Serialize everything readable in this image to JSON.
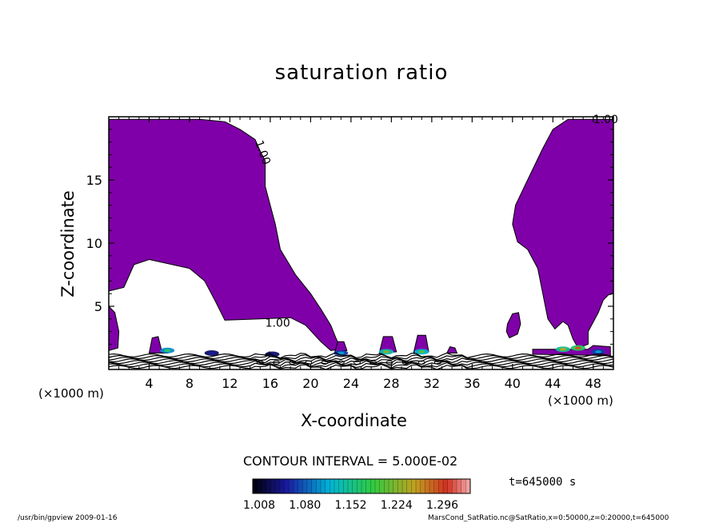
{
  "chart_data": {
    "type": "contour",
    "title": "saturation ratio",
    "xlabel": "X-coordinate",
    "ylabel": "Z-coordinate",
    "x_unit_left": "(×1000 m)",
    "x_unit_right": "(×1000 m)",
    "xlim": [
      0,
      50
    ],
    "ylim": [
      0,
      20
    ],
    "x_ticks": [
      4,
      8,
      12,
      16,
      20,
      24,
      28,
      32,
      36,
      40,
      44,
      48
    ],
    "y_ticks": [
      5,
      10,
      15
    ],
    "contour_labels": [
      "1.00",
      "1.00",
      "1.00"
    ],
    "contour_interval": "CONTOUR INTERVAL = 5.000E-02",
    "colorbar_ticks": [
      "1.008",
      "1.080",
      "1.152",
      "1.224",
      "1.296"
    ],
    "colorbar_range": [
      1.008,
      1.296
    ],
    "fill_color": "#7f00a8",
    "time_label": "t=645000 s",
    "saturated_regions": [
      {
        "name": "left-upper",
        "outline": [
          [
            0,
            19.8
          ],
          [
            9,
            19.8
          ],
          [
            11.5,
            19.6
          ],
          [
            13,
            19
          ],
          [
            14.5,
            18.2
          ],
          [
            15,
            17.3
          ],
          [
            15.5,
            16.5
          ],
          [
            15.5,
            14.5
          ],
          [
            16,
            13
          ],
          [
            16.5,
            11.5
          ],
          [
            17,
            9.5
          ],
          [
            18.5,
            7.5
          ],
          [
            20,
            6
          ],
          [
            21,
            4.8
          ],
          [
            22,
            3.5
          ],
          [
            22.5,
            2.5
          ],
          [
            23,
            1.6
          ],
          [
            22,
            1.5
          ],
          [
            21,
            2.2
          ],
          [
            19.5,
            3.5
          ],
          [
            18,
            4.1
          ],
          [
            15,
            4
          ],
          [
            11.5,
            3.9
          ],
          [
            10.5,
            5.5
          ],
          [
            9.5,
            7
          ],
          [
            8,
            8
          ],
          [
            4,
            8.7
          ],
          [
            2.5,
            8.3
          ],
          [
            1.5,
            6.5
          ],
          [
            0,
            6.2
          ]
        ]
      },
      {
        "name": "left-edge",
        "outline": [
          [
            0,
            5
          ],
          [
            0.6,
            4.5
          ],
          [
            1,
            3
          ],
          [
            0.9,
            1.7
          ],
          [
            0,
            1.5
          ]
        ]
      },
      {
        "name": "right-upper",
        "outline": [
          [
            49,
            19.8
          ],
          [
            50,
            19.8
          ],
          [
            50,
            6
          ],
          [
            49.5,
            5.9
          ],
          [
            49,
            5.5
          ],
          [
            48.5,
            4.5
          ],
          [
            47.5,
            3
          ],
          [
            47.5,
            2
          ],
          [
            46.5,
            1.7
          ],
          [
            46,
            2.4
          ],
          [
            45.5,
            3.5
          ],
          [
            45,
            3.8
          ],
          [
            44.2,
            3.2
          ],
          [
            43.5,
            4
          ],
          [
            43,
            6
          ],
          [
            42.5,
            8
          ],
          [
            41.5,
            9.5
          ],
          [
            40.5,
            10.1
          ],
          [
            40,
            11.5
          ],
          [
            40.3,
            13
          ],
          [
            41.5,
            15
          ],
          [
            43,
            17.5
          ],
          [
            44,
            19
          ],
          [
            45.5,
            19.8
          ]
        ]
      },
      {
        "name": "right-blob",
        "outline": [
          [
            39.5,
            3.6
          ],
          [
            40,
            4.4
          ],
          [
            40.6,
            4.5
          ],
          [
            40.8,
            3.6
          ],
          [
            40.5,
            2.8
          ],
          [
            39.7,
            2.5
          ],
          [
            39.4,
            3
          ]
        ]
      },
      {
        "name": "bump-1",
        "outline": [
          [
            4,
            1.3
          ],
          [
            4.3,
            2.5
          ],
          [
            4.9,
            2.6
          ],
          [
            5.2,
            1.6
          ],
          [
            5.8,
            1.3
          ]
        ]
      },
      {
        "name": "bump-2",
        "outline": [
          [
            22.4,
            1.4
          ],
          [
            22.7,
            2.2
          ],
          [
            23.3,
            2.2
          ],
          [
            23.6,
            1.5
          ]
        ]
      },
      {
        "name": "bump-3",
        "outline": [
          [
            26.8,
            1.3
          ],
          [
            27.2,
            2.6
          ],
          [
            28.1,
            2.6
          ],
          [
            28.5,
            1.4
          ]
        ]
      },
      {
        "name": "bump-4",
        "outline": [
          [
            30.2,
            1.3
          ],
          [
            30.6,
            2.7
          ],
          [
            31.4,
            2.7
          ],
          [
            31.7,
            1.4
          ]
        ]
      },
      {
        "name": "bump-5",
        "outline": [
          [
            33.5,
            1.3
          ],
          [
            33.8,
            1.8
          ],
          [
            34.3,
            1.7
          ],
          [
            34.5,
            1.3
          ]
        ]
      },
      {
        "name": "bump-6",
        "outline": [
          [
            15.5,
            1.1
          ],
          [
            15.9,
            1.4
          ],
          [
            16.3,
            1.1
          ]
        ]
      },
      {
        "name": "right-band",
        "outline": [
          [
            42,
            1.2
          ],
          [
            42,
            1.6
          ],
          [
            47.5,
            1.6
          ],
          [
            48,
            1.9
          ],
          [
            49.7,
            1.8
          ],
          [
            49.7,
            1.1
          ]
        ]
      }
    ],
    "hot_spots": [
      {
        "x": 5.8,
        "z": 1.5,
        "value": 1.15
      },
      {
        "x": 10.2,
        "z": 1.3,
        "value": 1.05
      },
      {
        "x": 27.5,
        "z": 1.4,
        "value": 1.2
      },
      {
        "x": 31,
        "z": 1.4,
        "value": 1.18
      },
      {
        "x": 23,
        "z": 1.3,
        "value": 1.1
      },
      {
        "x": 45,
        "z": 1.6,
        "value": 1.22
      },
      {
        "x": 46.5,
        "z": 1.7,
        "value": 1.25
      },
      {
        "x": 48.5,
        "z": 1.4,
        "value": 1.1
      },
      {
        "x": 16.2,
        "z": 1.2,
        "value": 1.05
      }
    ],
    "contour_bands_near_ground": 8
  },
  "footer": {
    "left": "/usr/bin/gpview   2009-01-16",
    "right": "MarsCond_SatRatio.nc@SatRatio,x=0:50000,z=0:20000,t=645000"
  }
}
